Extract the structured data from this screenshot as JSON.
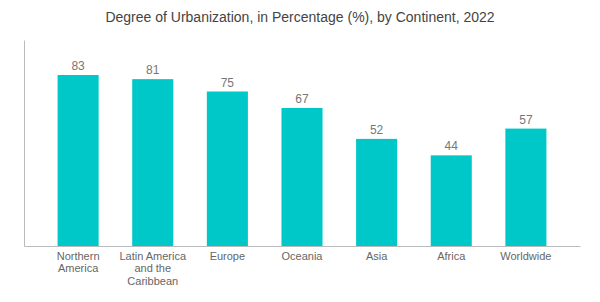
{
  "chart_data": {
    "type": "bar",
    "title": "Degree of Urbanization, in Percentage (%), by Continent, 2022",
    "categories": [
      "Northern\nAmerica",
      "Latin America\nand the\nCaribbean",
      "Europe",
      "Oceania",
      "Asia",
      "Africa",
      "Worldwide"
    ],
    "values": [
      83,
      81,
      75,
      67,
      52,
      44,
      57
    ],
    "color": "#00C8C8",
    "ylim": [
      0,
      100
    ],
    "grid": false,
    "data_labels": true,
    "tick_labels": "x"
  }
}
